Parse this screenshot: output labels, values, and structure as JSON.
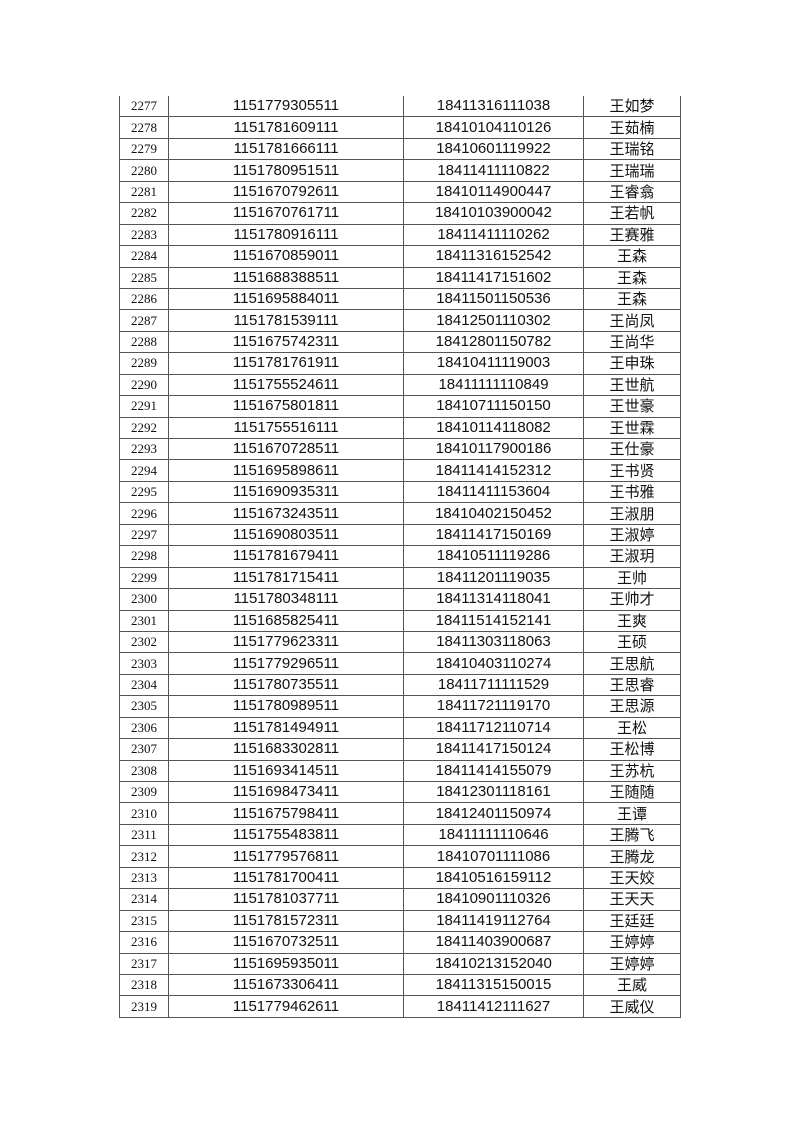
{
  "rows": [
    {
      "no": "2277",
      "id": "1151779305511",
      "code": "18411316111038",
      "name": "王如梦"
    },
    {
      "no": "2278",
      "id": "1151781609111",
      "code": "18410104110126",
      "name": "王茹楠"
    },
    {
      "no": "2279",
      "id": "1151781666111",
      "code": "18410601119922",
      "name": "王瑞铭"
    },
    {
      "no": "2280",
      "id": "1151780951511",
      "code": "18411411110822",
      "name": "王瑞瑞"
    },
    {
      "no": "2281",
      "id": "1151670792611",
      "code": "18410114900447",
      "name": "王睿翕"
    },
    {
      "no": "2282",
      "id": "1151670761711",
      "code": "18410103900042",
      "name": "王若帆"
    },
    {
      "no": "2283",
      "id": "1151780916111",
      "code": "18411411110262",
      "name": "王赛雅"
    },
    {
      "no": "2284",
      "id": "1151670859011",
      "code": "18411316152542",
      "name": "王森"
    },
    {
      "no": "2285",
      "id": "1151688388511",
      "code": "18411417151602",
      "name": "王森"
    },
    {
      "no": "2286",
      "id": "1151695884011",
      "code": "18411501150536",
      "name": "王森"
    },
    {
      "no": "2287",
      "id": "1151781539111",
      "code": "18412501110302",
      "name": "王尚凤"
    },
    {
      "no": "2288",
      "id": "1151675742311",
      "code": "18412801150782",
      "name": "王尚华"
    },
    {
      "no": "2289",
      "id": "1151781761911",
      "code": "18410411119003",
      "name": "王申珠"
    },
    {
      "no": "2290",
      "id": "1151755524611",
      "code": "18411111110849",
      "name": "王世航"
    },
    {
      "no": "2291",
      "id": "1151675801811",
      "code": "18410711150150",
      "name": "王世豪"
    },
    {
      "no": "2292",
      "id": "1151755516111",
      "code": "18410114118082",
      "name": "王世霖"
    },
    {
      "no": "2293",
      "id": "1151670728511",
      "code": "18410117900186",
      "name": "王仕豪"
    },
    {
      "no": "2294",
      "id": "1151695898611",
      "code": "18411414152312",
      "name": "王书贤"
    },
    {
      "no": "2295",
      "id": "1151690935311",
      "code": "18411411153604",
      "name": "王书雅"
    },
    {
      "no": "2296",
      "id": "1151673243511",
      "code": "18410402150452",
      "name": "王淑朋"
    },
    {
      "no": "2297",
      "id": "1151690803511",
      "code": "18411417150169",
      "name": "王淑婷"
    },
    {
      "no": "2298",
      "id": "1151781679411",
      "code": "18410511119286",
      "name": "王淑玥"
    },
    {
      "no": "2299",
      "id": "1151781715411",
      "code": "18411201119035",
      "name": "王帅"
    },
    {
      "no": "2300",
      "id": "1151780348111",
      "code": "18411314118041",
      "name": "王帅才"
    },
    {
      "no": "2301",
      "id": "1151685825411",
      "code": "18411514152141",
      "name": "王爽"
    },
    {
      "no": "2302",
      "id": "1151779623311",
      "code": "18411303118063",
      "name": "王硕"
    },
    {
      "no": "2303",
      "id": "1151779296511",
      "code": "18410403110274",
      "name": "王思航"
    },
    {
      "no": "2304",
      "id": "1151780735511",
      "code": "18411711111529",
      "name": "王思睿"
    },
    {
      "no": "2305",
      "id": "1151780989511",
      "code": "18411721119170",
      "name": "王思源"
    },
    {
      "no": "2306",
      "id": "1151781494911",
      "code": "18411712110714",
      "name": "王松"
    },
    {
      "no": "2307",
      "id": "1151683302811",
      "code": "18411417150124",
      "name": "王松博"
    },
    {
      "no": "2308",
      "id": "1151693414511",
      "code": "18411414155079",
      "name": "王苏杭"
    },
    {
      "no": "2309",
      "id": "1151698473411",
      "code": "18412301118161",
      "name": "王随随"
    },
    {
      "no": "2310",
      "id": "1151675798411",
      "code": "18412401150974",
      "name": "王谭"
    },
    {
      "no": "2311",
      "id": "1151755483811",
      "code": "18411111110646",
      "name": "王腾飞"
    },
    {
      "no": "2312",
      "id": "1151779576811",
      "code": "18410701111086",
      "name": "王腾龙"
    },
    {
      "no": "2313",
      "id": "1151781700411",
      "code": "18410516159112",
      "name": "王天姣"
    },
    {
      "no": "2314",
      "id": "1151781037711",
      "code": "18410901110326",
      "name": "王天天"
    },
    {
      "no": "2315",
      "id": "1151781572311",
      "code": "18411419112764",
      "name": "王廷廷"
    },
    {
      "no": "2316",
      "id": "1151670732511",
      "code": "18411403900687",
      "name": "王婷婷"
    },
    {
      "no": "2317",
      "id": "1151695935011",
      "code": "18410213152040",
      "name": "王婷婷"
    },
    {
      "no": "2318",
      "id": "1151673306411",
      "code": "18411315150015",
      "name": "王威"
    },
    {
      "no": "2319",
      "id": "1151779462611",
      "code": "18411412111627",
      "name": "王威仪"
    }
  ]
}
